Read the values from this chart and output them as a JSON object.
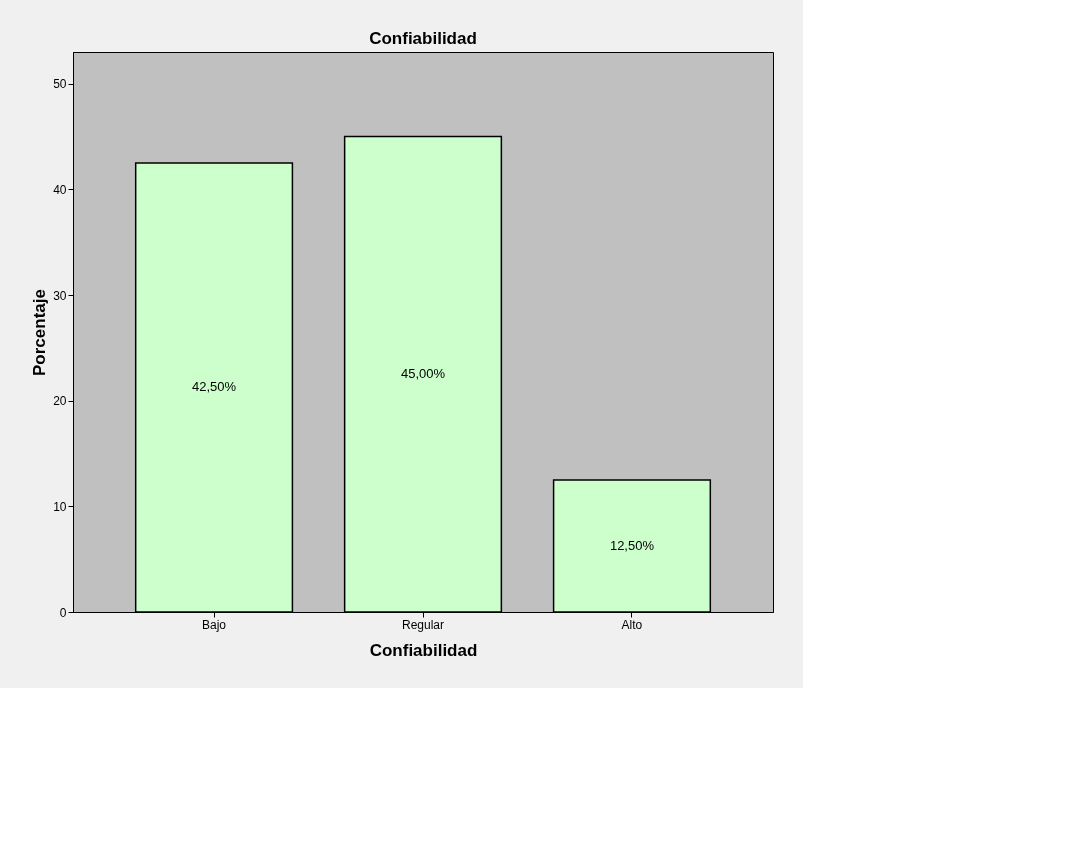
{
  "chart_data": {
    "type": "bar",
    "title": "Confiabilidad",
    "xlabel": "Confiabilidad",
    "ylabel": "Porcentaje",
    "categories": [
      "Bajo",
      "Regular",
      "Alto"
    ],
    "values": [
      42.5,
      45.0,
      12.5
    ],
    "value_labels": [
      "42,50%",
      "45,00%",
      "12,50%"
    ],
    "color": "#ccffcc",
    "ylim": [
      0,
      53
    ],
    "yticks": [
      0,
      10,
      20,
      30,
      40,
      50
    ],
    "grid": false
  }
}
